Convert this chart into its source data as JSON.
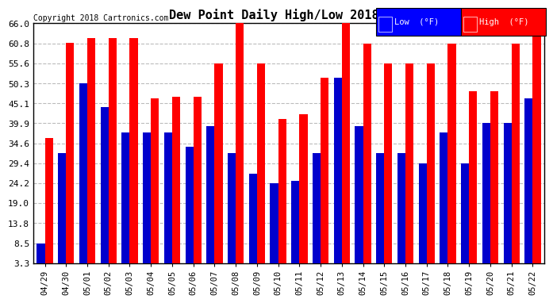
{
  "title": "Dew Point Daily High/Low 20180523",
  "copyright": "Copyright 2018 Cartronics.com",
  "dates": [
    "04/29",
    "04/30",
    "05/01",
    "05/02",
    "05/03",
    "05/04",
    "05/05",
    "05/06",
    "05/07",
    "05/08",
    "05/09",
    "05/10",
    "05/11",
    "05/12",
    "05/13",
    "05/14",
    "05/15",
    "05/16",
    "05/17",
    "05/18",
    "05/19",
    "05/20",
    "05/21",
    "05/22"
  ],
  "high": [
    36.0,
    61.0,
    62.2,
    62.2,
    62.2,
    46.4,
    46.9,
    46.9,
    55.6,
    66.0,
    55.6,
    41.0,
    42.2,
    51.8,
    66.2,
    60.8,
    55.6,
    55.6,
    55.6,
    60.8,
    48.2,
    48.2,
    60.8,
    66.0
  ],
  "low": [
    8.5,
    32.0,
    50.3,
    44.2,
    37.4,
    37.4,
    37.4,
    33.8,
    39.2,
    32.0,
    26.6,
    24.2,
    24.8,
    32.0,
    51.8,
    39.2,
    32.0,
    32.0,
    29.4,
    37.4,
    29.4,
    39.9,
    39.9,
    46.4
  ],
  "yticks": [
    3.3,
    8.5,
    13.8,
    19.0,
    24.2,
    29.4,
    34.6,
    39.9,
    45.1,
    50.3,
    55.6,
    60.8,
    66.0
  ],
  "ymin": 3.3,
  "ymax": 66.0,
  "bar_bottom": 0,
  "bar_width": 0.38,
  "high_color": "#ff0000",
  "low_color": "#0000cc",
  "bg_color": "#ffffff",
  "grid_color": "#bbbbbb",
  "legend_high_label": "High  (°F)",
  "legend_low_label": "Low  (°F)"
}
